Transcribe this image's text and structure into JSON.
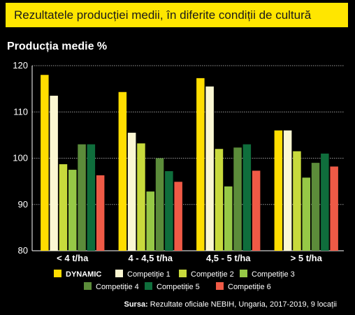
{
  "chart_data": {
    "type": "bar",
    "title": "Rezultatele producției medii, în diferite condiții de cultură",
    "ylabel": "Producția medie %",
    "xlabel": "",
    "ylim": [
      80,
      120
    ],
    "yticks": [
      80,
      90,
      100,
      110,
      120
    ],
    "grid": true,
    "legend_position": "bottom",
    "categories": [
      "< 4 t/ha",
      "4 - 4,5 t/ha",
      "4,5 - 5 t/ha",
      "> 5 t/ha"
    ],
    "series": [
      {
        "name": "DYNAMIC",
        "color": "#ffdd00",
        "values": [
          118,
          114.3,
          117.3,
          106
        ]
      },
      {
        "name": "Competiție 1",
        "color": "#fbf7d2",
        "values": [
          113.5,
          105.5,
          115.5,
          106
        ]
      },
      {
        "name": "Competiție 2",
        "color": "#c8da3c",
        "values": [
          98.7,
          103.2,
          102,
          101.5
        ]
      },
      {
        "name": "Competiție 3",
        "color": "#96c846",
        "values": [
          97.5,
          92.8,
          93.9,
          95.8
        ]
      },
      {
        "name": "Competiție 4",
        "color": "#5c8c3a",
        "values": [
          103,
          100,
          102.3,
          99
        ]
      },
      {
        "name": "Competiție 5",
        "color": "#0f6e3c",
        "values": [
          103,
          97.2,
          103,
          101
        ]
      },
      {
        "name": "Competiție 6",
        "color": "#ef5a46",
        "values": [
          96.3,
          94.9,
          97.3,
          98.2
        ]
      }
    ]
  },
  "source": {
    "label": "Sursa:",
    "text": "Rezultate oficiale NEBIH, Ungaria, 2017-2019, 9 locații"
  }
}
